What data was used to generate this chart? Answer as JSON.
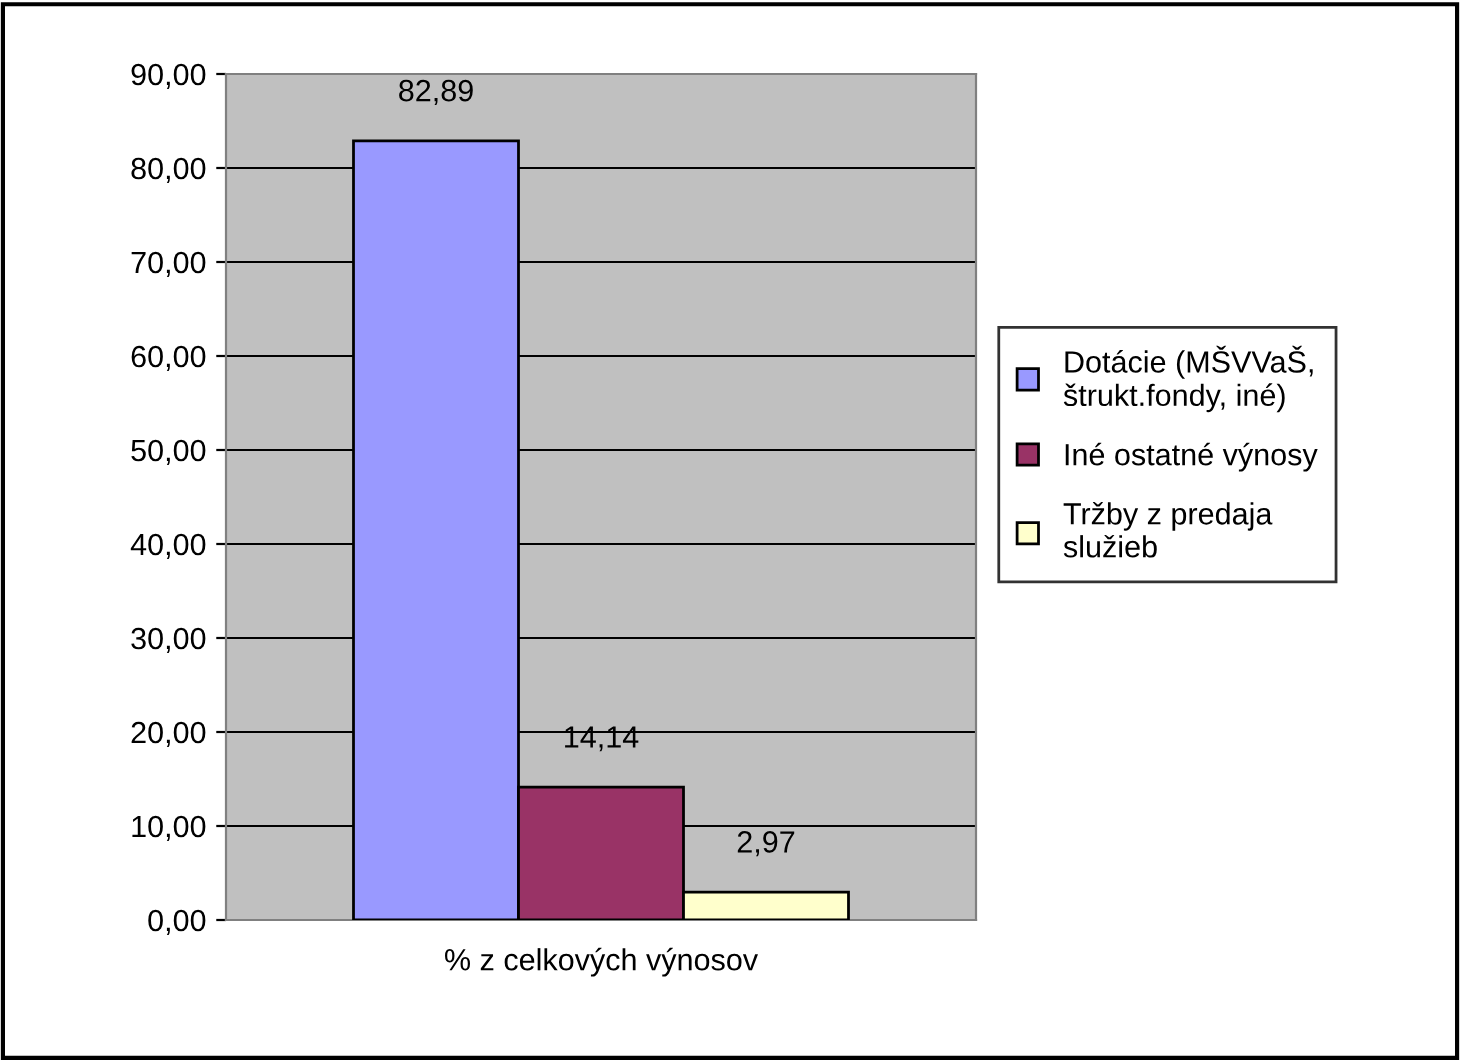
{
  "chart_data": {
    "type": "bar",
    "categories": [
      "% z celkových výnosov"
    ],
    "series": [
      {
        "name": "Dotácie (MŠVVaŠ,\nštrukt.fondy, iné)",
        "color": "#9999ff",
        "values": [
          82.89
        ],
        "value_labels": [
          "82,89"
        ]
      },
      {
        "name": "Iné ostatné výnosy",
        "color": "#993366",
        "values": [
          14.14
        ],
        "value_labels": [
          "14,14"
        ]
      },
      {
        "name": "Tržby z predaja\nslužieb",
        "color": "#ffffcc",
        "values": [
          2.97
        ],
        "value_labels": [
          "2,97"
        ]
      }
    ],
    "ylim": [
      0,
      90
    ],
    "yticks": [
      {
        "value": 0,
        "label": "0,00"
      },
      {
        "value": 10,
        "label": "10,00"
      },
      {
        "value": 20,
        "label": "20,00"
      },
      {
        "value": 30,
        "label": "30,00"
      },
      {
        "value": 40,
        "label": "40,00"
      },
      {
        "value": 50,
        "label": "50,00"
      },
      {
        "value": 60,
        "label": "60,00"
      },
      {
        "value": 70,
        "label": "70,00"
      },
      {
        "value": 80,
        "label": "80,00"
      },
      {
        "value": 90,
        "label": "90,00"
      }
    ],
    "grid": "y",
    "legend": "right"
  }
}
